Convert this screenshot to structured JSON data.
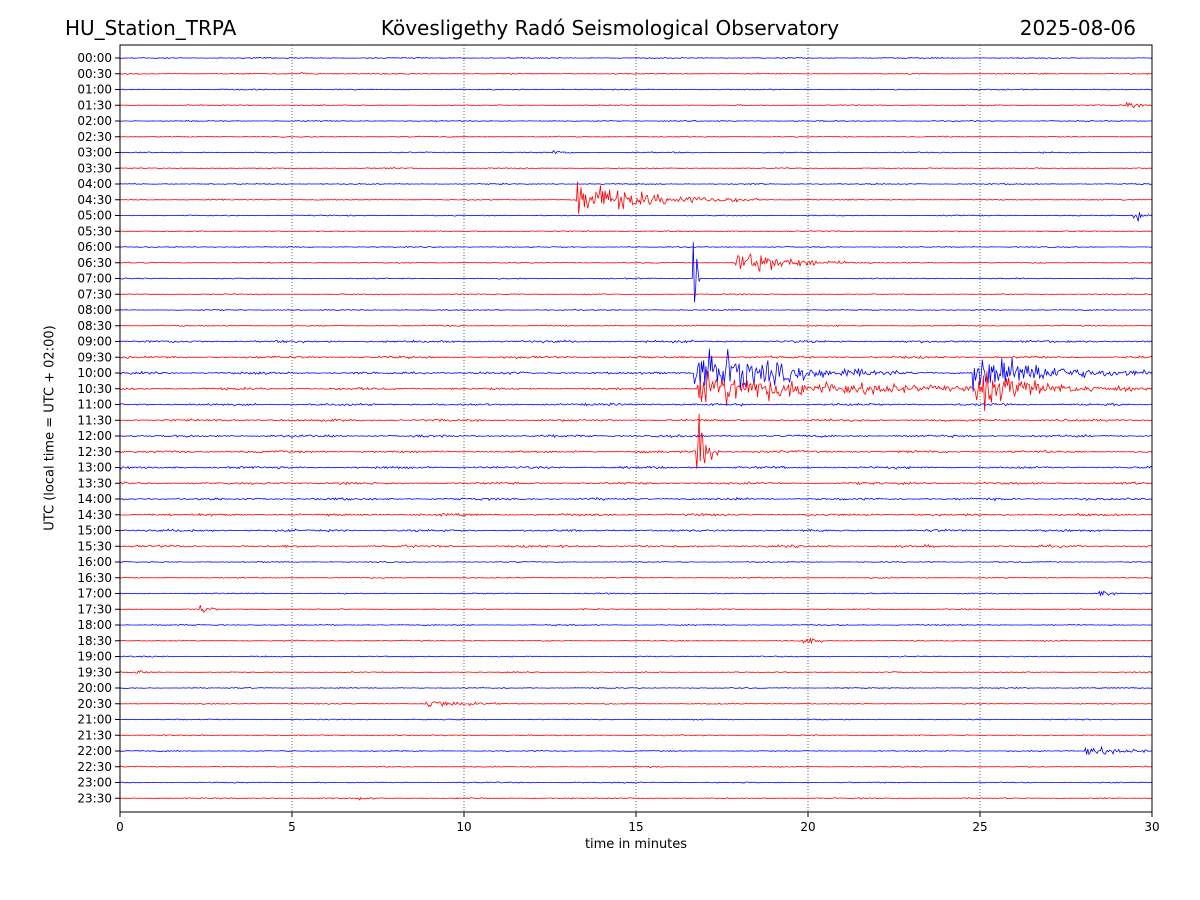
{
  "header": {
    "station": "HU_Station_TRPA",
    "title": "Kövesligethy Radó Seismological Observatory",
    "date": "2025-08-06"
  },
  "chart_data": {
    "type": "line",
    "subtype": "helicorder",
    "title": "Kövesligethy Radó Seismological Observatory",
    "xlabel": "time in minutes",
    "ylabel": "UTC (local time = UTC + 02:00)",
    "xlim": [
      0,
      30
    ],
    "xticks": [
      0,
      5,
      10,
      15,
      20,
      25,
      30
    ],
    "grid": "vertical dotted at x ticks",
    "trace_colors": [
      "#0000ff",
      "#ff0000"
    ],
    "rows": [
      "00:00",
      "00:30",
      "01:00",
      "01:30",
      "02:00",
      "02:30",
      "03:00",
      "03:30",
      "04:00",
      "04:30",
      "05:00",
      "05:30",
      "06:00",
      "06:30",
      "07:00",
      "07:30",
      "08:00",
      "08:30",
      "09:00",
      "09:30",
      "10:00",
      "10:30",
      "11:00",
      "11:30",
      "12:00",
      "12:30",
      "13:00",
      "13:30",
      "14:00",
      "14:30",
      "15:00",
      "15:30",
      "16:00",
      "16:30",
      "17:00",
      "17:30",
      "18:00",
      "18:30",
      "19:00",
      "19:30",
      "20:00",
      "20:30",
      "21:00",
      "21:30",
      "22:00",
      "22:30",
      "23:00",
      "23:30"
    ],
    "events": [
      {
        "row": "00:30",
        "minute": 5.2,
        "amp": 0.4,
        "duration": 0.8
      },
      {
        "row": "01:30",
        "minute": 29.3,
        "amp": 0.6,
        "duration": 0.7
      },
      {
        "row": "03:00",
        "minute": 12.6,
        "amp": 0.5,
        "duration": 0.6
      },
      {
        "row": "04:30",
        "minute": 13.3,
        "amp": 4.5,
        "duration": 4.0
      },
      {
        "row": "05:00",
        "minute": 29.5,
        "amp": 1.6,
        "duration": 0.5
      },
      {
        "row": "06:30",
        "minute": 17.95,
        "amp": 3.0,
        "duration": 3.0
      },
      {
        "row": "07:00",
        "minute": 16.7,
        "amp": 14.0,
        "duration": 0.15
      },
      {
        "row": "10:00",
        "minute": 16.75,
        "amp": 7.0,
        "duration": 4.5
      },
      {
        "row": "10:30",
        "minute": 16.85,
        "amp": 4.0,
        "duration": 8.0
      },
      {
        "row": "10:00",
        "minute": 24.85,
        "amp": 5.5,
        "duration": 4.0
      },
      {
        "row": "10:30",
        "minute": 24.9,
        "amp": 4.0,
        "duration": 3.5
      },
      {
        "row": "12:30",
        "minute": 16.8,
        "amp": 12.0,
        "duration": 0.5
      },
      {
        "row": "17:30",
        "minute": 2.35,
        "amp": 1.2,
        "duration": 0.4
      },
      {
        "row": "17:00",
        "minute": 28.5,
        "amp": 0.8,
        "duration": 0.5
      },
      {
        "row": "18:30",
        "minute": 19.9,
        "amp": 0.9,
        "duration": 0.6
      },
      {
        "row": "19:30",
        "minute": 0.45,
        "amp": 0.6,
        "duration": 0.4
      },
      {
        "row": "20:30",
        "minute": 8.9,
        "amp": 1.0,
        "duration": 2.0
      },
      {
        "row": "22:00",
        "minute": 28.1,
        "amp": 1.3,
        "duration": 2.0
      },
      {
        "row": "23:30",
        "minute": 7.0,
        "amp": 0.4,
        "duration": 0.6
      }
    ]
  }
}
